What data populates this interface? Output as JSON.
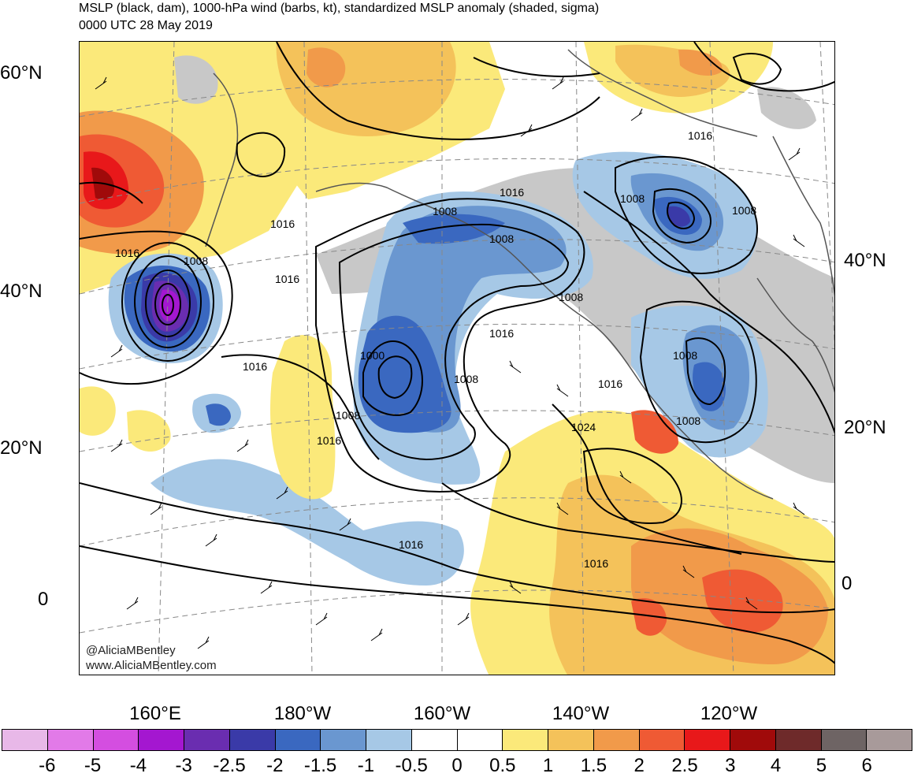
{
  "title_line1": "MSLP (black, dam), 1000-hPa wind (barbs, kt), standardized MSLP anomaly (shaded, sigma)",
  "title_line2": "0000 UTC 28 May 2019",
  "lat_labels_left": [
    "60°N",
    "40°N",
    "20°N",
    "0"
  ],
  "lat_labels_right": [
    "40°N",
    "20°N",
    "0"
  ],
  "lon_labels": [
    "160°E",
    "180°W",
    "160°W",
    "140°W",
    "120°W"
  ],
  "credit_handle": "@AliciaMBentley",
  "credit_site": "www.AliciaMBentley.com",
  "isobar_labels": [
    "1016",
    "1008",
    "1016",
    "1016",
    "1008",
    "1016",
    "1016",
    "1016",
    "1008",
    "1008",
    "1008",
    "1008",
    "1000",
    "1008",
    "1016",
    "1016",
    "1024",
    "1016",
    "1008",
    "1016",
    "1008",
    "1008",
    "1016"
  ],
  "colorbar": {
    "colors": [
      "#e8b8e8",
      "#e27ae8",
      "#d44ee0",
      "#a417d0",
      "#6a2db0",
      "#3a3aa8",
      "#3a68c0",
      "#6a97d0",
      "#a6c8e6",
      "#ffffff",
      "#ffffff",
      "#fbe97a",
      "#f4c25a",
      "#f19a4a",
      "#ef5a34",
      "#e8181a",
      "#a00a0a",
      "#6e2a2a",
      "#6e6464",
      "#a89a9a"
    ],
    "labels": [
      "-6",
      "-5",
      "-4",
      "-3",
      "-2.5",
      "-2",
      "-1.5",
      "-1",
      "-0.5",
      "0",
      "0.5",
      "1",
      "1.5",
      "2",
      "2.5",
      "3",
      "4",
      "5",
      "6"
    ]
  }
}
